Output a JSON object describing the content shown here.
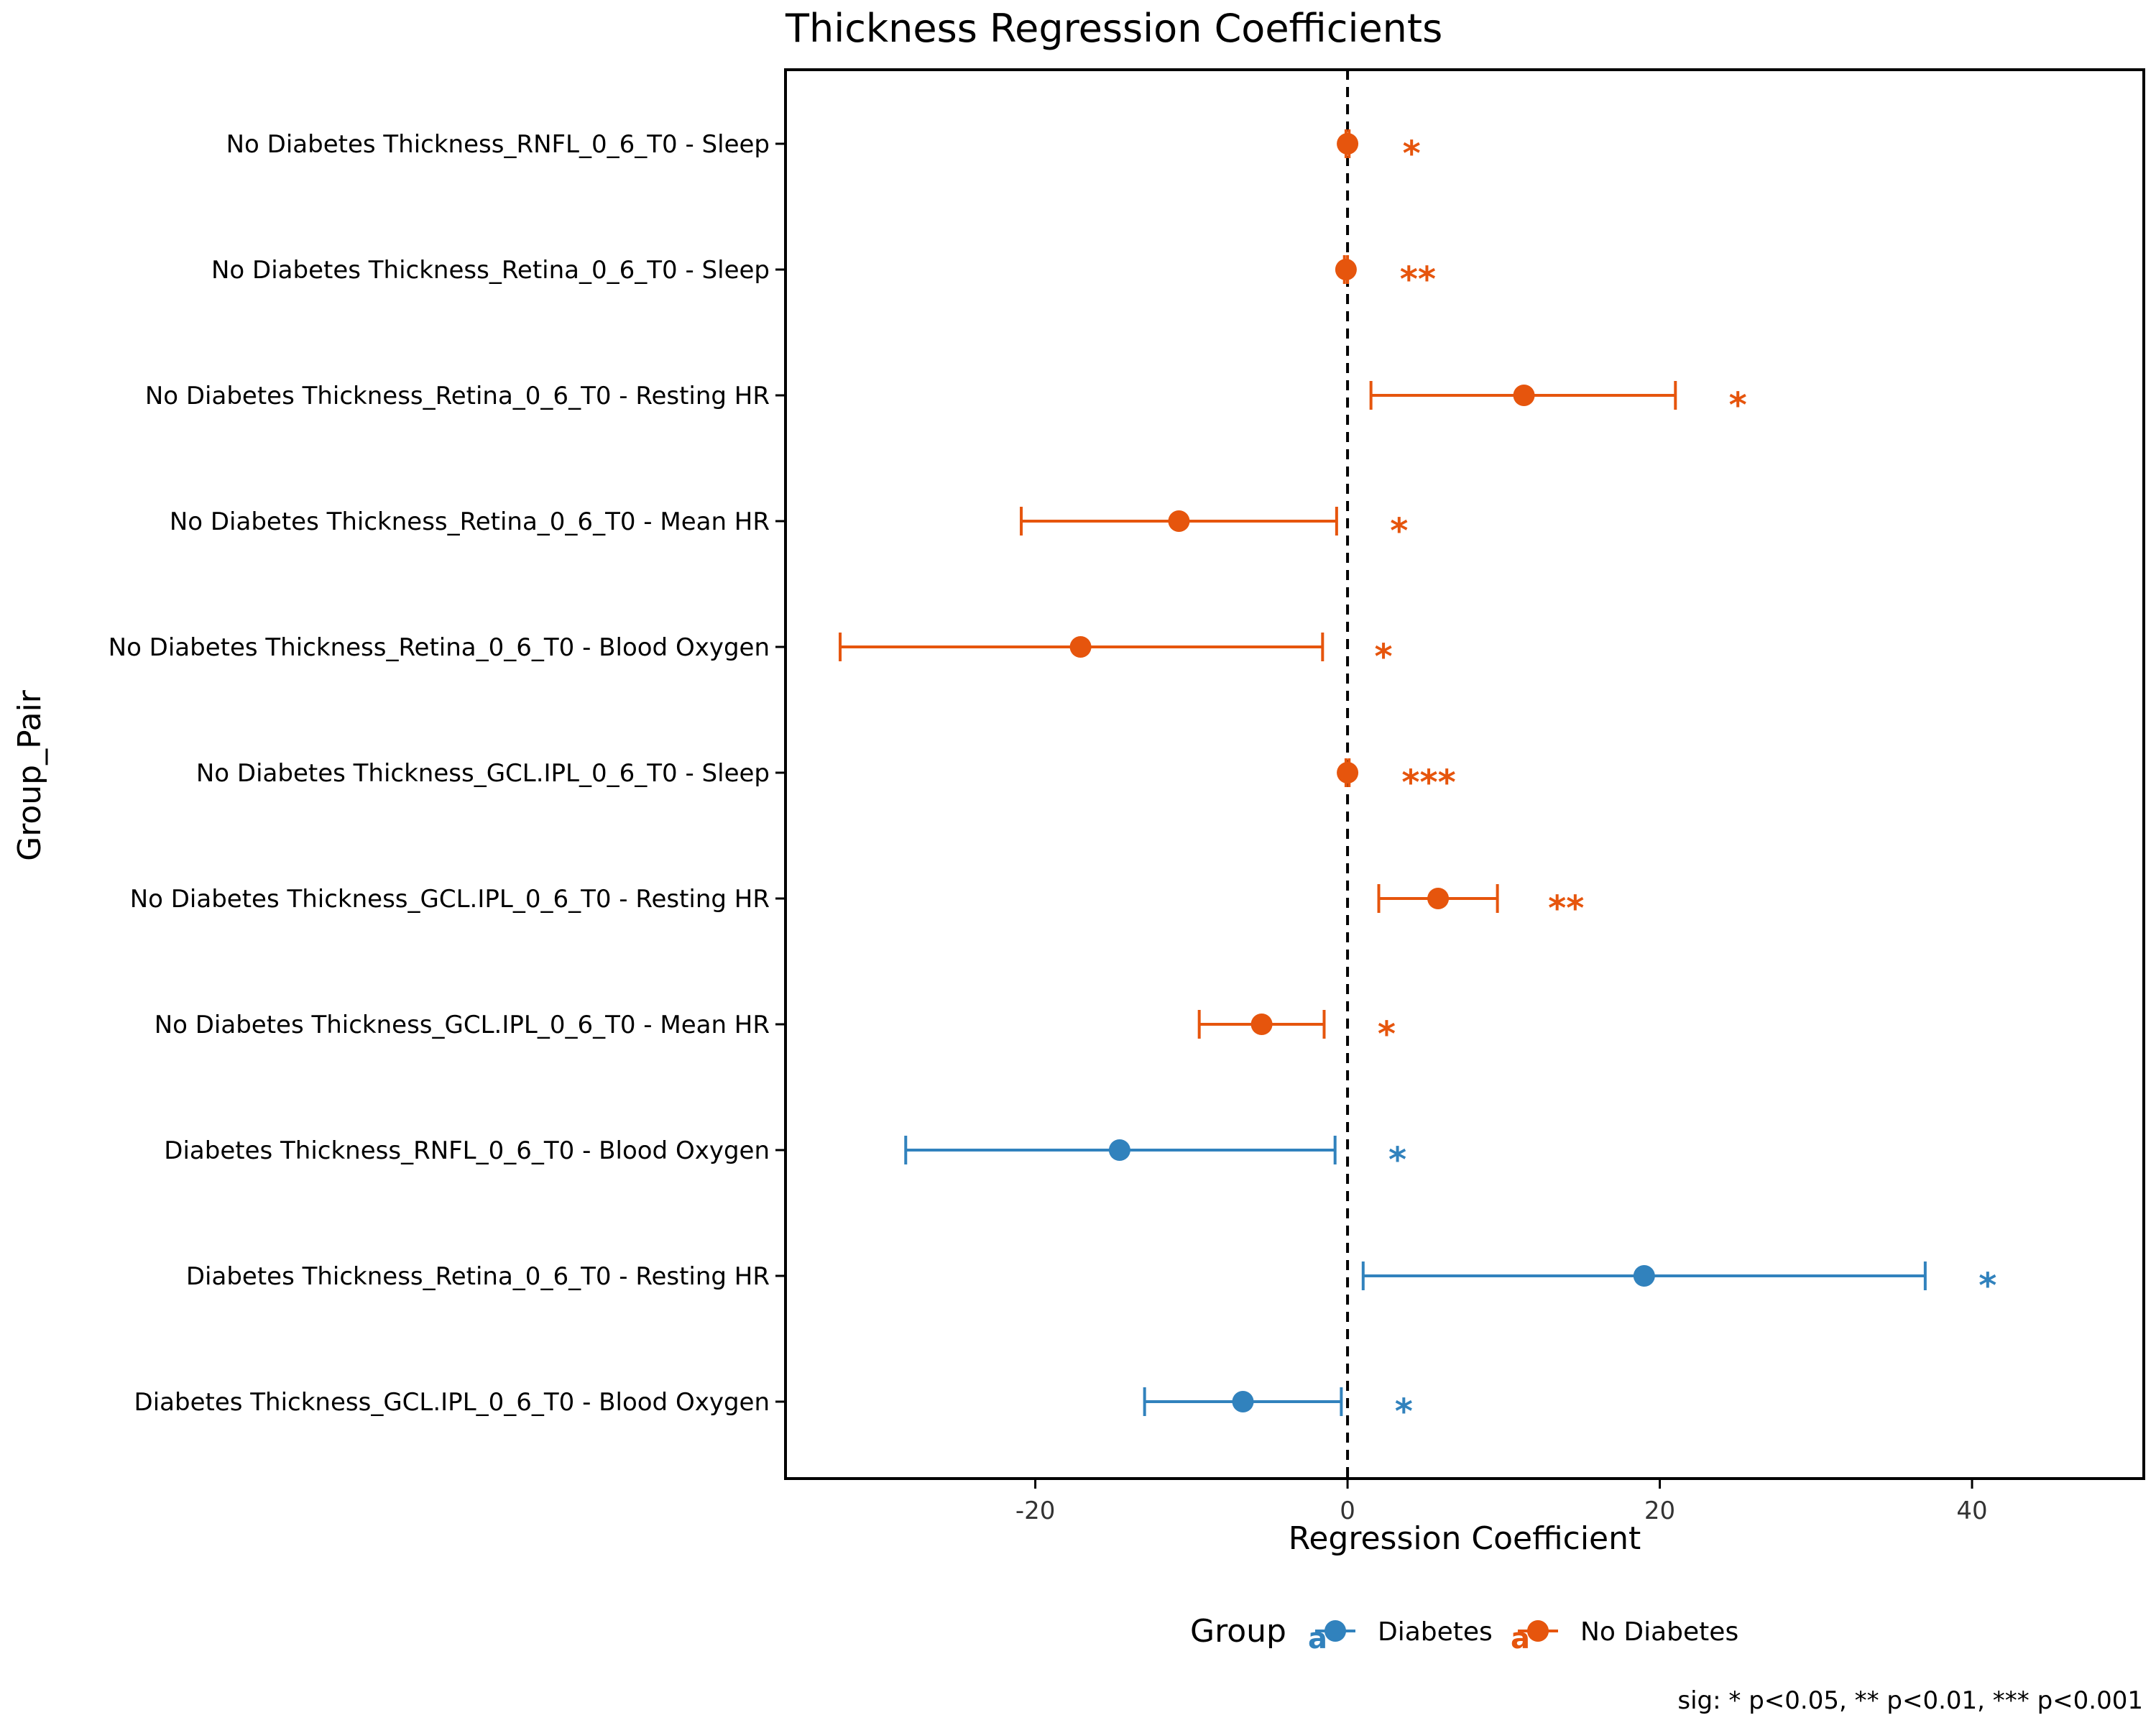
{
  "chart_data": {
    "type": "forest",
    "title": "Thickness Regression Coefficients",
    "xlabel": "Regression Coefficient",
    "ylabel": "Group_Pair",
    "xlim": [
      -36,
      51
    ],
    "x_ticks": [
      -20,
      0,
      20,
      40
    ],
    "reference_line": 0,
    "grid": false,
    "legend": {
      "title": "Group",
      "placement": "bottom",
      "entries": [
        {
          "label": "Diabetes",
          "color": "#3182bd"
        },
        {
          "label": "No Diabetes",
          "color": "#e6550d"
        }
      ]
    },
    "caption": "sig: * p<0.05, ** p<0.01, *** p<0.001",
    "rows": [
      {
        "label": "No Diabetes Thickness_RNFL_0_6_T0 - Sleep",
        "group": "No Diabetes",
        "estimate": 0.0,
        "low": -0.1,
        "high": 0.1,
        "sig": "*",
        "sig_x": 4.1
      },
      {
        "label": "No Diabetes Thickness_Retina_0_6_T0 - Sleep",
        "group": "No Diabetes",
        "estimate": -0.1,
        "low": -0.2,
        "high": 0.0,
        "sig": "**",
        "sig_x": 4.5
      },
      {
        "label": "No Diabetes Thickness_Retina_0_6_T0 - Resting HR",
        "group": "No Diabetes",
        "estimate": 11.3,
        "low": 1.5,
        "high": 21.0,
        "sig": "*",
        "sig_x": 25.0
      },
      {
        "label": "No Diabetes Thickness_Retina_0_6_T0 - Mean HR",
        "group": "No Diabetes",
        "estimate": -10.8,
        "low": -20.9,
        "high": -0.7,
        "sig": "*",
        "sig_x": 3.3
      },
      {
        "label": "No Diabetes Thickness_Retina_0_6_T0 - Blood Oxygen",
        "group": "No Diabetes",
        "estimate": -17.1,
        "low": -32.5,
        "high": -1.6,
        "sig": "*",
        "sig_x": 2.3
      },
      {
        "label": "No Diabetes Thickness_GCL.IPL_0_6_T0 - Sleep",
        "group": "No Diabetes",
        "estimate": 0.0,
        "low": -0.1,
        "high": 0.1,
        "sig": "***",
        "sig_x": 5.2
      },
      {
        "label": "No Diabetes Thickness_GCL.IPL_0_6_T0 - Resting HR",
        "group": "No Diabetes",
        "estimate": 5.8,
        "low": 2.0,
        "high": 9.6,
        "sig": "**",
        "sig_x": 14.0
      },
      {
        "label": "No Diabetes Thickness_GCL.IPL_0_6_T0 - Mean HR",
        "group": "No Diabetes",
        "estimate": -5.5,
        "low": -9.5,
        "high": -1.5,
        "sig": "*",
        "sig_x": 2.5
      },
      {
        "label": "Diabetes Thickness_RNFL_0_6_T0 - Blood Oxygen",
        "group": "Diabetes",
        "estimate": -14.6,
        "low": -28.3,
        "high": -0.8,
        "sig": "*",
        "sig_x": 3.2
      },
      {
        "label": "Diabetes Thickness_Retina_0_6_T0 - Resting HR",
        "group": "Diabetes",
        "estimate": 19.0,
        "low": 1.0,
        "high": 37.0,
        "sig": "*",
        "sig_x": 41.0
      },
      {
        "label": "Diabetes Thickness_GCL.IPL_0_6_T0 - Blood Oxygen",
        "group": "Diabetes",
        "estimate": -6.7,
        "low": -13.0,
        "high": -0.4,
        "sig": "*",
        "sig_x": 3.6
      }
    ]
  }
}
